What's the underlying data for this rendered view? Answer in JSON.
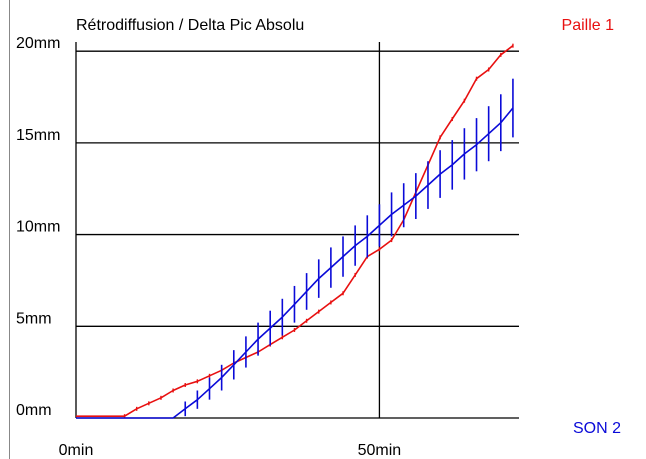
{
  "chart_data": {
    "type": "line",
    "title": "Rétrodiffusion / Delta Pic Absolu",
    "xlabel": "",
    "ylabel": "",
    "xlim": [
      0,
      73
    ],
    "ylim": [
      0,
      20.5
    ],
    "x_ticks": [
      {
        "value": 0,
        "label": "0min"
      },
      {
        "value": 50,
        "label": "50min"
      }
    ],
    "y_ticks": [
      {
        "value": 0,
        "label": "0mm"
      },
      {
        "value": 5,
        "label": "5mm"
      },
      {
        "value": 10,
        "label": "10mm"
      },
      {
        "value": 15,
        "label": "15mm"
      },
      {
        "value": 20,
        "label": "20mm"
      }
    ],
    "grid": true,
    "series": [
      {
        "name": "Paille 1",
        "color": "#e81010",
        "legend_position": "top-right",
        "x": [
          0,
          2,
          4,
          6,
          8,
          10,
          12,
          14,
          16,
          18,
          20,
          22,
          24,
          26,
          28,
          30,
          32,
          34,
          36,
          38,
          40,
          42,
          44,
          46,
          48,
          50,
          52,
          54,
          56,
          58,
          60,
          62,
          64,
          66,
          68,
          70,
          72
        ],
        "y": [
          0.1,
          0.1,
          0.1,
          0.1,
          0.1,
          0.5,
          0.8,
          1.1,
          1.5,
          1.8,
          2.0,
          2.3,
          2.6,
          3.0,
          3.3,
          3.6,
          4.0,
          4.4,
          4.8,
          5.3,
          5.8,
          6.3,
          6.8,
          7.8,
          8.8,
          9.2,
          9.7,
          10.8,
          12.3,
          13.8,
          15.3,
          16.3,
          17.3,
          18.5,
          19.0,
          19.8,
          20.3
        ]
      },
      {
        "name": "SON 2",
        "color": "#0a0ad8",
        "legend_position": "bottom-right",
        "x": [
          0,
          2,
          4,
          6,
          8,
          10,
          12,
          14,
          16,
          18,
          20,
          22,
          24,
          26,
          28,
          30,
          32,
          34,
          36,
          38,
          40,
          42,
          44,
          46,
          48,
          50,
          52,
          54,
          56,
          58,
          60,
          62,
          64,
          66,
          68,
          70,
          72
        ],
        "y": [
          0.0,
          0.0,
          0.0,
          0.0,
          0.0,
          0.0,
          0.0,
          0.0,
          0.0,
          0.5,
          1.0,
          1.6,
          2.2,
          2.9,
          3.6,
          4.3,
          4.9,
          5.5,
          6.2,
          6.9,
          7.6,
          8.2,
          8.8,
          9.4,
          9.9,
          10.5,
          11.1,
          11.6,
          12.1,
          12.7,
          13.3,
          13.8,
          14.4,
          14.9,
          15.5,
          16.1,
          16.9
        ],
        "error": [
          0,
          0,
          0,
          0,
          0,
          0,
          0,
          0,
          0,
          0.4,
          0.5,
          0.6,
          0.7,
          0.8,
          0.85,
          0.9,
          0.95,
          1.0,
          1.0,
          1.0,
          1.05,
          1.1,
          1.1,
          1.1,
          1.15,
          1.15,
          1.2,
          1.2,
          1.25,
          1.3,
          1.3,
          1.35,
          1.4,
          1.45,
          1.5,
          1.55,
          1.6
        ]
      }
    ]
  }
}
